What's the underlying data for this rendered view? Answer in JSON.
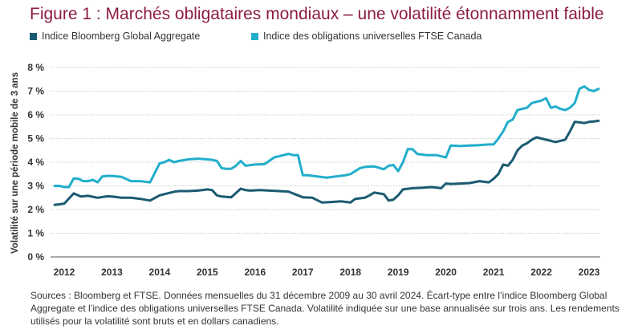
{
  "title": "Figure 1 : Marchés obligataires mondiaux – une volatilité étonnamment faible",
  "source_note": "Sources : Bloomberg et FTSE. Données mensuelles du 31 décembre 2009 au 30 avril 2024. Écart-type entre l’indice Bloomberg Global Aggregate et l’indice des obligations universelles FTSE Canada. Volatilité indiquée sur une base annualisée sur trois ans. Les rendements utilisés pour la volatilité sont bruts et en dollars canadiens.",
  "colors": {
    "title": "#8c1d40",
    "global": "#1b5b72",
    "canada": "#22aecb",
    "grid": "#c8c8c8"
  },
  "chart_data": {
    "type": "line",
    "ylabel": "Volatilité sur une période mobile de 3 ans",
    "ylim": [
      0,
      8
    ],
    "yticks": [
      "0 %",
      "1 %",
      "2 %",
      "3 %",
      "4 %",
      "5 %",
      "6 %",
      "7 %",
      "8 %"
    ],
    "xlim": [
      2011.8,
      2023.2
    ],
    "xticks": [
      "2012",
      "2013",
      "2014",
      "2015",
      "2016",
      "2017",
      "2018",
      "2019",
      "2020",
      "2021",
      "2022",
      "2023"
    ],
    "grid": "horizontal",
    "legend": "top",
    "series": [
      {
        "name": "Indice Bloomberg Global Aggregate",
        "color": "#1b5b72",
        "x": [
          2011.8,
          2011.9,
          2012.0,
          2012.2,
          2012.35,
          2012.5,
          2012.7,
          2012.9,
          2013.0,
          2013.2,
          2013.4,
          2013.6,
          2013.8,
          2014.0,
          2014.1,
          2014.2,
          2014.3,
          2014.4,
          2014.6,
          2014.8,
          2015.0,
          2015.1,
          2015.2,
          2015.3,
          2015.5,
          2015.7,
          2015.8,
          2015.9,
          2016.1,
          2016.3,
          2016.5,
          2016.7,
          2016.9,
          2017.0,
          2017.2,
          2017.4,
          2017.6,
          2017.8,
          2018.0,
          2018.1,
          2018.3,
          2018.4,
          2018.5,
          2018.6,
          2018.7,
          2018.8,
          2018.9,
          2019.0,
          2019.1,
          2019.3,
          2019.5,
          2019.7,
          2019.9,
          2020.0,
          2020.1,
          2020.3,
          2020.5,
          2020.7,
          2020.9,
          2021.0,
          2021.1,
          2021.2,
          2021.3,
          2021.4,
          2021.5,
          2021.6,
          2021.7,
          2021.8,
          2021.9,
          2022.0,
          2022.1,
          2022.2,
          2022.3,
          2022.4,
          2022.5,
          2022.6,
          2022.7,
          2022.8,
          2022.9,
          2023.0,
          2023.1,
          2023.2
        ],
        "values": [
          2.2,
          2.22,
          2.25,
          2.68,
          2.55,
          2.58,
          2.5,
          2.56,
          2.55,
          2.5,
          2.5,
          2.45,
          2.38,
          2.6,
          2.65,
          2.7,
          2.75,
          2.78,
          2.78,
          2.8,
          2.85,
          2.82,
          2.6,
          2.55,
          2.52,
          2.88,
          2.82,
          2.8,
          2.82,
          2.8,
          2.78,
          2.76,
          2.6,
          2.52,
          2.5,
          2.3,
          2.32,
          2.35,
          2.3,
          2.45,
          2.5,
          2.6,
          2.72,
          2.68,
          2.65,
          2.38,
          2.42,
          2.6,
          2.85,
          2.9,
          2.92,
          2.95,
          2.9,
          3.1,
          3.08,
          3.1,
          3.12,
          3.2,
          3.15,
          3.3,
          3.5,
          3.9,
          3.85,
          4.1,
          4.5,
          4.7,
          4.8,
          4.95,
          5.05,
          5.0,
          4.95,
          4.9,
          4.85,
          4.9,
          4.95,
          5.3,
          5.7,
          5.68,
          5.65,
          5.7,
          5.72,
          5.75
        ]
      },
      {
        "name": "Indice des obligations universelles FTSE Canada",
        "color": "#22aecb",
        "x": [
          2011.8,
          2011.9,
          2012.0,
          2012.1,
          2012.2,
          2012.3,
          2012.4,
          2012.5,
          2012.6,
          2012.7,
          2012.8,
          2012.9,
          2013.0,
          2013.2,
          2013.4,
          2013.6,
          2013.8,
          2014.0,
          2014.1,
          2014.2,
          2014.3,
          2014.4,
          2014.6,
          2014.8,
          2015.0,
          2015.1,
          2015.2,
          2015.3,
          2015.4,
          2015.5,
          2015.6,
          2015.7,
          2015.8,
          2016.0,
          2016.2,
          2016.4,
          2016.6,
          2016.7,
          2016.8,
          2016.9,
          2017.0,
          2017.1,
          2017.3,
          2017.5,
          2017.7,
          2017.9,
          2018.0,
          2018.2,
          2018.3,
          2018.5,
          2018.7,
          2018.8,
          2018.9,
          2019.0,
          2019.1,
          2019.2,
          2019.3,
          2019.4,
          2019.6,
          2019.8,
          2020.0,
          2020.1,
          2020.3,
          2020.5,
          2020.7,
          2020.9,
          2021.0,
          2021.1,
          2021.2,
          2021.3,
          2021.4,
          2021.5,
          2021.6,
          2021.7,
          2021.8,
          2021.9,
          2022.0,
          2022.1,
          2022.2,
          2022.3,
          2022.4,
          2022.5,
          2022.6,
          2022.7,
          2022.8,
          2022.9,
          2023.0,
          2023.1,
          2023.2
        ],
        "values": [
          3.0,
          3.0,
          2.95,
          2.95,
          3.32,
          3.3,
          3.2,
          3.2,
          3.25,
          3.15,
          3.4,
          3.42,
          3.42,
          3.38,
          3.2,
          3.2,
          3.15,
          3.95,
          4.0,
          4.1,
          4.0,
          4.05,
          4.12,
          4.15,
          4.12,
          4.1,
          4.05,
          3.75,
          3.72,
          3.72,
          3.85,
          4.05,
          3.85,
          3.9,
          3.92,
          4.2,
          4.3,
          4.35,
          4.3,
          4.3,
          3.45,
          3.45,
          3.4,
          3.35,
          3.4,
          3.45,
          3.5,
          3.75,
          3.8,
          3.82,
          3.7,
          3.85,
          3.88,
          3.62,
          4.0,
          4.55,
          4.55,
          4.35,
          4.3,
          4.3,
          4.2,
          4.7,
          4.68,
          4.7,
          4.72,
          4.75,
          4.75,
          5.0,
          5.3,
          5.7,
          5.8,
          6.2,
          6.25,
          6.3,
          6.5,
          6.55,
          6.6,
          6.7,
          6.3,
          6.35,
          6.25,
          6.2,
          6.3,
          6.5,
          7.1,
          7.2,
          7.05,
          7.0,
          7.1
        ]
      }
    ]
  }
}
